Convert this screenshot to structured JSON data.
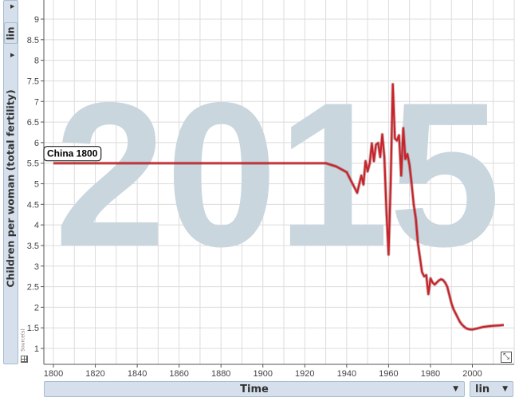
{
  "y_axis": {
    "scale_label": "lin",
    "indicator_label": "Children per woman (total fertility)",
    "source_label": "Source(s)"
  },
  "x_axis": {
    "indicator_label": "Time",
    "scale_label": "lin"
  },
  "chart_data": {
    "type": "line",
    "watermark": "2015",
    "xlim": [
      1800,
      2015
    ],
    "ylim": [
      1,
      9
    ],
    "x_ticks": [
      1800,
      1820,
      1840,
      1860,
      1880,
      1900,
      1920,
      1940,
      1960,
      1980,
      2000
    ],
    "y_ticks": [
      1,
      1.5,
      2,
      2.5,
      3,
      3.5,
      4,
      4.5,
      5,
      5.5,
      6,
      6.5,
      7,
      7.5,
      8,
      8.5,
      9
    ],
    "label": "China 1800",
    "line_color": "#c8232b",
    "grid": true,
    "series": [
      {
        "x": [
          1800,
          1930,
          1935,
          1940,
          1945,
          1947,
          1948,
          1949,
          1950,
          1951,
          1952,
          1953,
          1954,
          1955,
          1956,
          1957,
          1958,
          1959,
          1960,
          1961,
          1962,
          1963,
          1964,
          1965,
          1966,
          1967,
          1968,
          1969,
          1970,
          1971,
          1972,
          1973,
          1974,
          1975,
          1976,
          1977,
          1978,
          1979,
          1980,
          1981,
          1982,
          1983,
          1984,
          1985,
          1986,
          1987,
          1988,
          1989,
          1990,
          1991,
          1992,
          1993,
          1994,
          1995,
          1996,
          1997,
          1998,
          1999,
          2000,
          2002,
          2005,
          2008,
          2010,
          2013,
          2015
        ],
        "y": [
          5.5,
          5.5,
          5.42,
          5.28,
          4.78,
          5.2,
          4.98,
          5.55,
          5.3,
          5.5,
          5.98,
          5.55,
          5.95,
          5.99,
          5.65,
          6.2,
          5.65,
          4.3,
          3.28,
          5.0,
          7.42,
          6.1,
          6.05,
          6.18,
          5.2,
          6.35,
          5.6,
          5.72,
          5.45,
          5.0,
          4.5,
          4.15,
          3.55,
          3.2,
          2.85,
          2.75,
          2.78,
          2.32,
          2.7,
          2.6,
          2.55,
          2.6,
          2.65,
          2.68,
          2.66,
          2.6,
          2.5,
          2.3,
          2.1,
          1.95,
          1.85,
          1.75,
          1.65,
          1.58,
          1.53,
          1.49,
          1.47,
          1.46,
          1.46,
          1.48,
          1.52,
          1.54,
          1.55,
          1.56,
          1.57
        ]
      }
    ]
  }
}
